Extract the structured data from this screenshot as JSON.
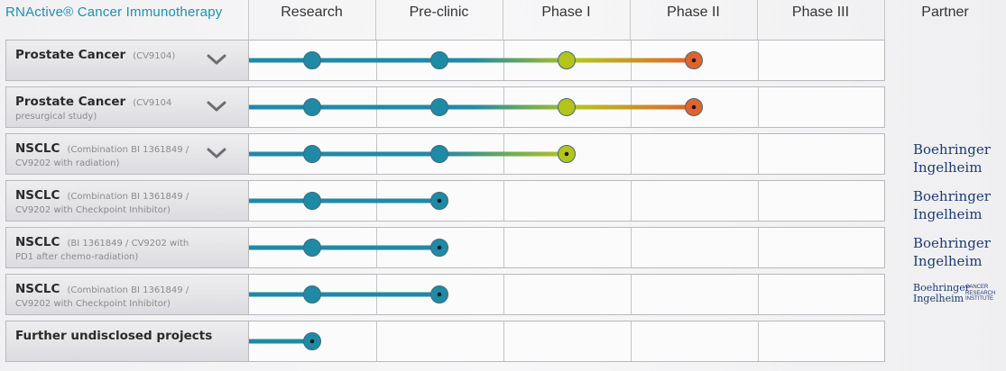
{
  "header": {
    "title": "RNActive® Cancer Immunotherapy",
    "columns": [
      "Research",
      "Pre-clinic",
      "Phase I",
      "Phase II",
      "Phase III",
      "Partner"
    ]
  },
  "colors": {
    "teal": "#1f8aa6",
    "lime": "#b5c41c",
    "orange": "#e2622e",
    "title_blue": "#1f8fb0",
    "partner_navy": "#1e3a70"
  },
  "stage_names": [
    "Research",
    "Pre-clinic",
    "Phase I",
    "Phase II",
    "Phase III"
  ],
  "rows": [
    {
      "name": "Prostate Cancer",
      "detail": "(CV9104)",
      "detail2": "",
      "stage": 4,
      "expandable": true,
      "partner": ""
    },
    {
      "name": "Prostate Cancer",
      "detail": "(CV9104",
      "detail2": "presurgical study)",
      "stage": 4,
      "expandable": true,
      "partner": ""
    },
    {
      "name": "NSCLC",
      "detail": "(Combination BI 1361849 /",
      "detail2": "CV9202 with radiation)",
      "stage": 3,
      "expandable": true,
      "partner": "Boehringer Ingelheim"
    },
    {
      "name": "NSCLC",
      "detail": "(Combination BI 1361849 /",
      "detail2": "CV9202 with Checkpoint Inhibitor)",
      "stage": 2,
      "expandable": false,
      "partner": "Boehringer Ingelheim"
    },
    {
      "name": "NSCLC",
      "detail": "(BI 1361849 / CV9202 with",
      "detail2": "PD1 after chemo-radiation)",
      "stage": 2,
      "expandable": false,
      "partner": "Boehringer Ingelheim"
    },
    {
      "name": "NSCLC",
      "detail": "(Combination BI 1361849 /",
      "detail2": "CV9202 with Checkpoint Inhibitor)",
      "stage": 2,
      "expandable": false,
      "partner": "Boehringer Ingelheim"
    },
    {
      "name": "Further undisclosed projects",
      "detail": "",
      "detail2": "",
      "stage": 1,
      "expandable": false,
      "partner": ""
    }
  ],
  "partner_logos": {
    "boehringer_line1": "Boehringer",
    "boehringer_line2": "Ingelheim",
    "cri_lines": [
      "CANCER",
      "RESEARCH",
      "INSTITUTE"
    ]
  }
}
